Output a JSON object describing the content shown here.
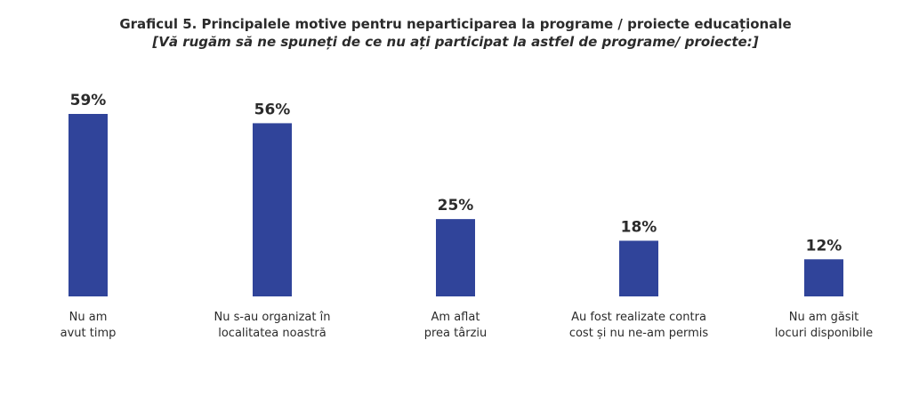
{
  "chart_data": {
    "type": "bar",
    "title": "Graficul 5. Principalele motive pentru neparticiparea la programe / proiecte educaționale",
    "subtitle": "[Vă rugăm să ne spuneți de ce nu ați participat la astfel de programe/ proiecte:]",
    "categories": [
      [
        "Nu am",
        "avut timp"
      ],
      [
        "Nu s-au organizat în",
        "localitatea noastră"
      ],
      [
        "Am aflat",
        "prea târziu"
      ],
      [
        "Au fost realizate contra",
        "cost și nu ne-am permis"
      ],
      [
        "Nu am găsit",
        "locuri disponibile"
      ]
    ],
    "values": [
      59,
      56,
      25,
      18,
      12
    ],
    "value_labels": [
      "59%",
      "56%",
      "25%",
      "18%",
      "12%"
    ],
    "unit": "%",
    "xlabel": "",
    "ylabel": "",
    "ylim": [
      0,
      59
    ],
    "grid": false,
    "legend": "none",
    "bar_color": "#30449a"
  }
}
